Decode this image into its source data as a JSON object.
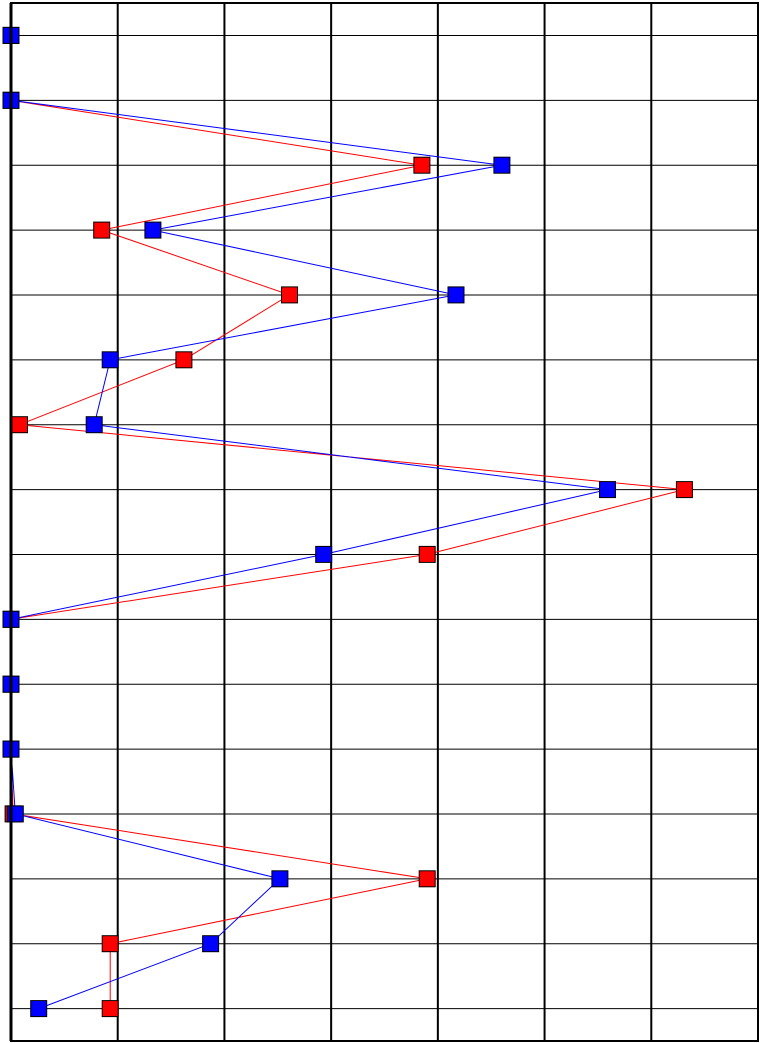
{
  "chart_data": {
    "type": "line",
    "orientation": "vertical-profile",
    "title": "",
    "xlabel": "",
    "ylabel": "",
    "grid": true,
    "legend": "none",
    "xlim": [
      0,
      7
    ],
    "ylim": [
      0.5,
      16.5
    ],
    "y_order": "top-to-bottom",
    "y": [
      1,
      2,
      3,
      4,
      5,
      6,
      7,
      8,
      9,
      10,
      11,
      12,
      13,
      14,
      15,
      16
    ],
    "series": [
      {
        "color": "#ff0000",
        "values": [
          0,
          0,
          3.85,
          0.85,
          2.61,
          1.62,
          0.08,
          6.31,
          3.9,
          0,
          0,
          0,
          0.02,
          3.9,
          0.93,
          0.93
        ]
      },
      {
        "color": "#0000ff",
        "values": [
          0,
          0,
          4.6,
          1.33,
          4.17,
          0.93,
          0.78,
          5.59,
          2.93,
          0,
          0,
          0,
          0.04,
          2.52,
          1.87,
          0.26
        ]
      }
    ]
  }
}
